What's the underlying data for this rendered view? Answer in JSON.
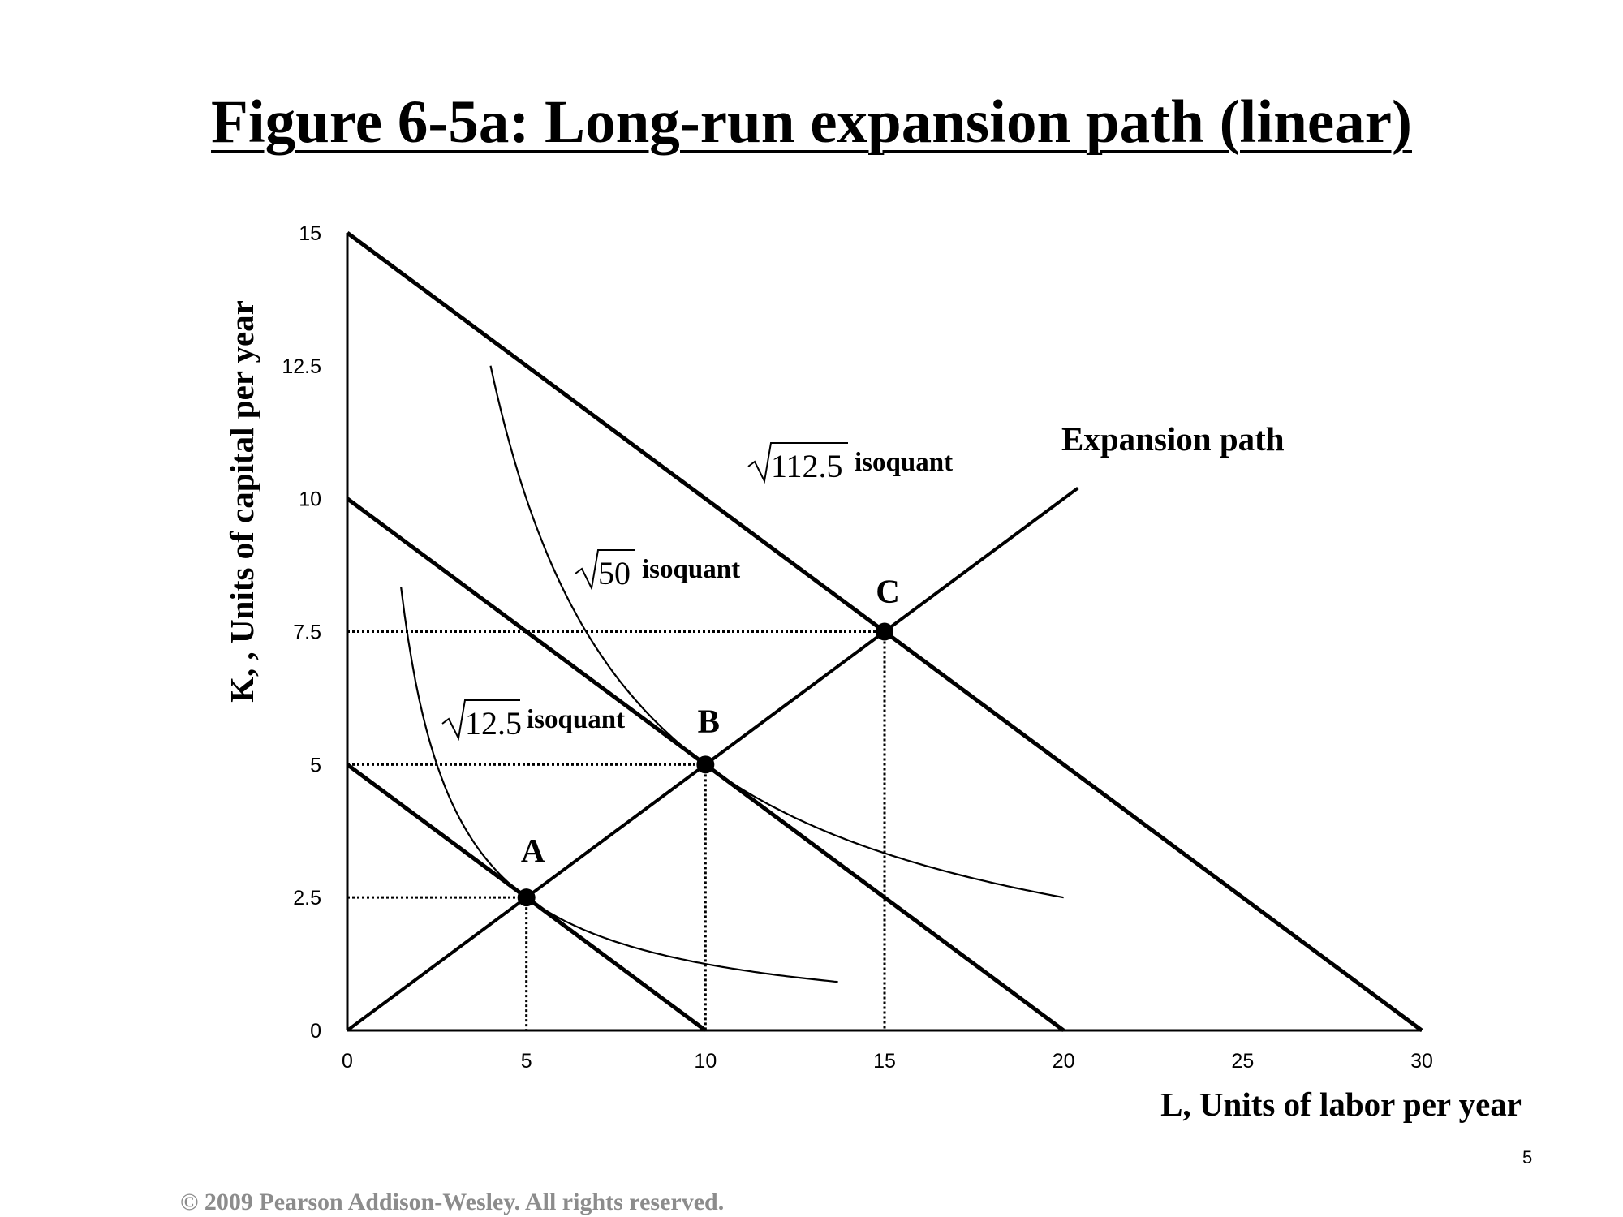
{
  "chart_data": {
    "type": "line",
    "title": "Figure 6-5a: Long-run expansion path (linear)",
    "xlabel": "L, Units of  labor per year",
    "ylabel": "K, , Units of  capital per year",
    "xlim": [
      0,
      30
    ],
    "ylim": [
      0,
      15
    ],
    "x_ticks": [
      "0",
      "5",
      "10",
      "15",
      "20",
      "25",
      "30"
    ],
    "y_ticks": [
      "0",
      "2.5",
      "5",
      "7.5",
      "10",
      "12.5",
      "15"
    ],
    "isocost_lines": [
      {
        "x": [
          0,
          10
        ],
        "y": [
          5,
          0
        ]
      },
      {
        "x": [
          0,
          20
        ],
        "y": [
          10,
          0
        ]
      },
      {
        "x": [
          0,
          30
        ],
        "y": [
          15,
          0
        ]
      }
    ],
    "expansion_path": {
      "name": "Expansion path",
      "x": [
        0,
        20.4
      ],
      "y": [
        0,
        10.2
      ]
    },
    "isoquants": [
      {
        "name": "isoquant",
        "radicand": "12.5",
        "k": 12.5,
        "x_range": [
          1.5,
          13.7
        ]
      },
      {
        "name": "isoquant",
        "radicand": "50",
        "k": 50,
        "x_range": [
          4,
          20
        ]
      }
    ],
    "isoquant_label_112": {
      "radicand": "112.5",
      "text": "isoquant"
    },
    "points": [
      {
        "label": "A",
        "x": 5,
        "y": 2.5
      },
      {
        "label": "B",
        "x": 10,
        "y": 5
      },
      {
        "label": "C",
        "x": 15,
        "y": 7.5
      }
    ],
    "grid": false
  },
  "footer": "© 2009 Pearson Addison-Wesley. All rights reserved.",
  "page_number": "5"
}
